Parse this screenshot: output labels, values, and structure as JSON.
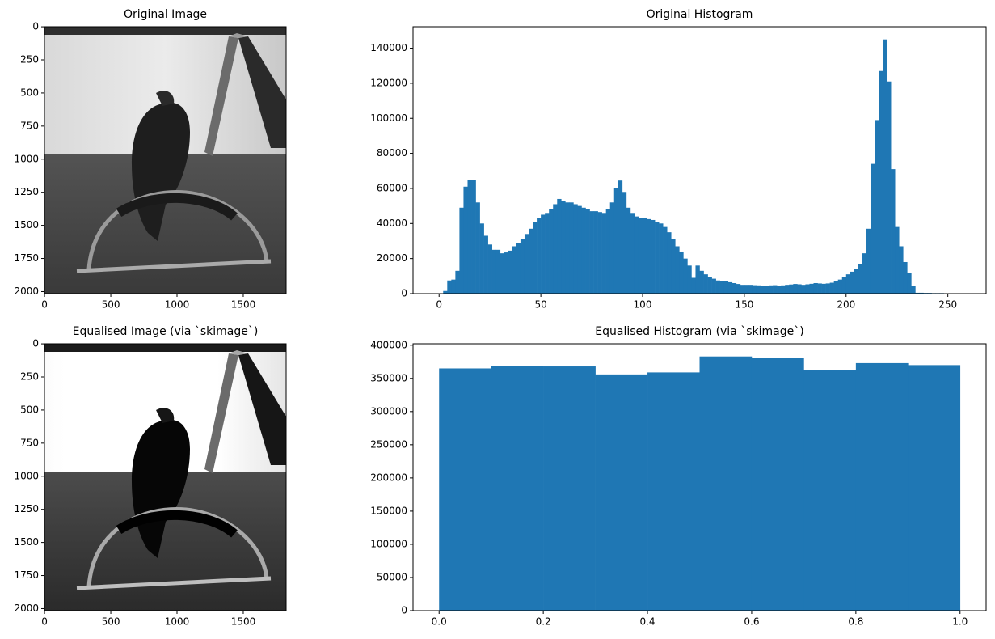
{
  "chart_data": [
    {
      "type": "image",
      "title": "Original Image",
      "xlim": [
        -0.5,
        1823.5
      ],
      "ylim": [
        2015.5,
        -0.5
      ],
      "xticks": [
        0,
        500,
        1000,
        1500
      ],
      "yticks": [
        0,
        250,
        500,
        750,
        1000,
        1250,
        1500,
        1750,
        2000
      ]
    },
    {
      "type": "histogram",
      "title": "Original Histogram",
      "color": "#1f77b4",
      "bins": [
        0,
        2,
        4,
        6,
        8,
        10,
        12,
        14,
        16,
        18,
        20,
        22,
        24,
        26,
        28,
        30,
        32,
        34,
        36,
        38,
        40,
        42,
        44,
        46,
        48,
        50,
        52,
        54,
        56,
        58,
        60,
        62,
        64,
        66,
        68,
        70,
        72,
        74,
        76,
        78,
        80,
        82,
        84,
        86,
        88,
        90,
        92,
        94,
        96,
        98,
        100,
        102,
        104,
        106,
        108,
        110,
        112,
        114,
        116,
        118,
        120,
        122,
        124,
        126,
        128,
        130,
        132,
        134,
        136,
        138,
        140,
        142,
        144,
        146,
        148,
        150,
        152,
        154,
        156,
        158,
        160,
        162,
        164,
        166,
        168,
        170,
        172,
        174,
        176,
        178,
        180,
        182,
        184,
        186,
        188,
        190,
        192,
        194,
        196,
        198,
        200,
        202,
        204,
        206,
        208,
        210,
        212,
        214,
        216,
        218,
        220,
        222,
        224,
        226,
        228,
        230,
        232,
        234,
        236,
        238,
        240,
        242,
        244,
        246,
        248,
        250,
        252,
        254,
        256
      ],
      "counts": [
        0,
        1500,
        7500,
        8000,
        13000,
        49000,
        61000,
        65000,
        65000,
        52000,
        40000,
        33000,
        28000,
        25000,
        25000,
        23000,
        23500,
        24500,
        27000,
        29000,
        31000,
        34000,
        37000,
        41000,
        43000,
        45000,
        46000,
        48000,
        51000,
        54000,
        53000,
        52000,
        52000,
        51000,
        50000,
        49000,
        48000,
        47000,
        47000,
        46500,
        46000,
        48000,
        52000,
        60000,
        64500,
        58000,
        49000,
        46000,
        44000,
        43000,
        43000,
        42500,
        42000,
        41000,
        40000,
        38000,
        35000,
        31000,
        27000,
        24000,
        20000,
        16000,
        9000,
        16000,
        13000,
        11000,
        9500,
        8500,
        7500,
        7000,
        7000,
        6500,
        6000,
        5500,
        5000,
        5000,
        5000,
        4800,
        4700,
        4600,
        4600,
        4700,
        4800,
        4600,
        4700,
        5000,
        5200,
        5500,
        5300,
        5000,
        5300,
        5600,
        6000,
        5800,
        5600,
        5800,
        6200,
        7000,
        8000,
        9500,
        11000,
        12500,
        14000,
        17000,
        23000,
        37000,
        74000,
        99000,
        127000,
        145000,
        121000,
        71000,
        38000,
        27000,
        18000,
        12000,
        4500,
        500,
        500,
        400,
        400,
        300,
        300,
        300,
        200,
        100,
        0,
        0
      ],
      "xlim": [
        -12.8,
        268.8
      ],
      "ylim": [
        0,
        152250
      ],
      "xticks": [
        0,
        50,
        100,
        150,
        200,
        250
      ],
      "yticks": [
        0,
        20000,
        40000,
        60000,
        80000,
        100000,
        120000,
        140000
      ]
    },
    {
      "type": "image",
      "title": "Equalised Image (via `skimage`)",
      "xlim": [
        -0.5,
        1823.5
      ],
      "ylim": [
        2015.5,
        -0.5
      ],
      "xticks": [
        0,
        500,
        1000,
        1500
      ],
      "yticks": [
        0,
        250,
        500,
        750,
        1000,
        1250,
        1500,
        1750,
        2000
      ]
    },
    {
      "type": "histogram",
      "title": "Equalised Histogram (via `skimage`)",
      "color": "#1f77b4",
      "bins": [
        0,
        0.1,
        0.2,
        0.3,
        0.4,
        0.5,
        0.6,
        0.7,
        0.8,
        0.9,
        1.0
      ],
      "counts": [
        365000,
        369000,
        368000,
        356000,
        359000,
        383000,
        381000,
        363000,
        373000,
        370000
      ],
      "xlim": [
        -0.05,
        1.05
      ],
      "ylim": [
        0,
        402150
      ],
      "xticks": [
        {
          "value": 0,
          "label": "0.0"
        },
        {
          "value": 0.2,
          "label": "0.2"
        },
        {
          "value": 0.4,
          "label": "0.4"
        },
        {
          "value": 0.6,
          "label": "0.6"
        },
        {
          "value": 0.8,
          "label": "0.8"
        },
        {
          "value": 1,
          "label": "1.0"
        }
      ],
      "yticks": [
        0,
        50000,
        100000,
        150000,
        200000,
        250000,
        300000,
        350000,
        400000
      ]
    }
  ]
}
